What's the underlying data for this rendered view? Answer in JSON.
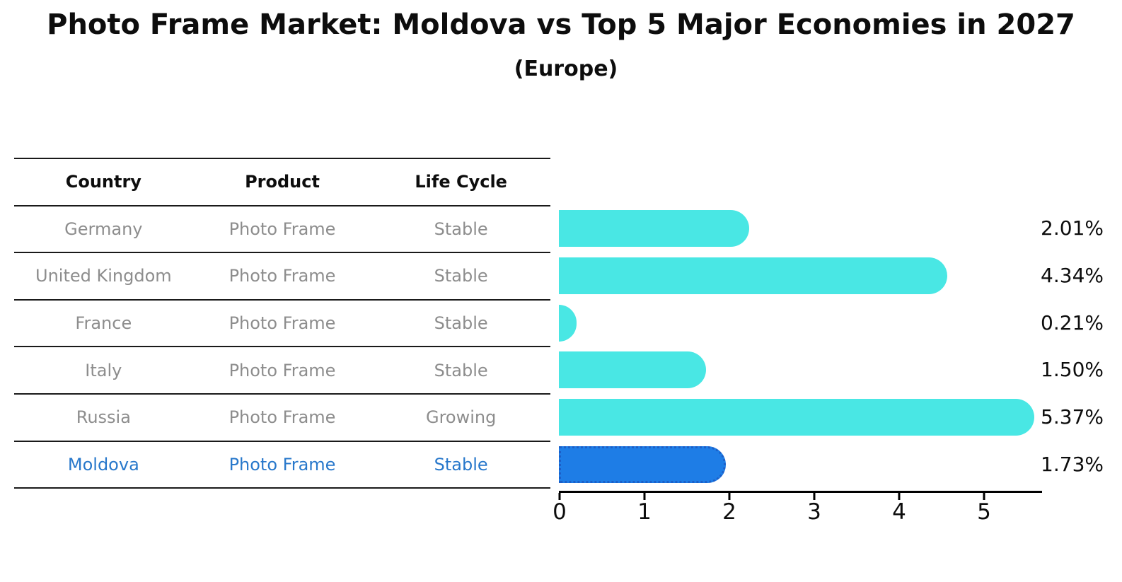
{
  "title": "Photo Frame Market: Moldova vs Top 5 Major Economies in 2027",
  "subtitle": "(Europe)",
  "table": {
    "headers": [
      "Country",
      "Product",
      "Life Cycle"
    ],
    "rows": [
      [
        "Germany",
        "Photo Frame",
        "Stable"
      ],
      [
        "United Kingdom",
        "Photo Frame",
        "Stable"
      ],
      [
        "France",
        "Photo Frame",
        "Stable"
      ],
      [
        "Italy",
        "Photo Frame",
        "Stable"
      ],
      [
        "Russia",
        "Photo Frame",
        "Growing"
      ],
      [
        "Moldova",
        "Photo Frame",
        "Stable"
      ]
    ],
    "highlighted_country": "Moldova"
  },
  "chart_data": {
    "type": "bar",
    "orientation": "horizontal",
    "title": "Photo Frame Market: Moldova vs Top 5 Major Economies in 2027 (Europe)",
    "categories": [
      "Germany",
      "United Kingdom",
      "France",
      "Italy",
      "Russia",
      "Moldova"
    ],
    "values": [
      2.01,
      4.34,
      0.21,
      1.5,
      5.37,
      1.73
    ],
    "value_labels": [
      "2.01%",
      "4.34%",
      "0.21%",
      "1.50%",
      "5.37%",
      "1.73%"
    ],
    "xlabel": "",
    "ylabel": "",
    "xlim": [
      0,
      5.68
    ],
    "xticks": [
      "0",
      "1",
      "2",
      "3",
      "4",
      "5"
    ],
    "grid": false,
    "legend": "none",
    "highlight_index": 5
  },
  "colors": {
    "bar_default": "#49E7E4",
    "bar_highlight": "#1E7DE6",
    "bar_highlight_border": "#1C5FC8",
    "highlight_text": "#2878CB",
    "table_text": "#8D8D8D",
    "heading_text": "#0D0D0D",
    "axis": "#000000"
  }
}
